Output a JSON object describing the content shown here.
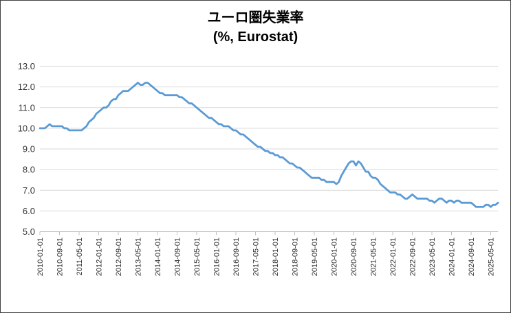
{
  "chart": {
    "title_line1": "ユーロ圏失業率",
    "title_line2": "(%, Eurostat)",
    "colors": {
      "line": "#5B9BD5",
      "gridline": "#D9D9D9",
      "axis": "#BFBFBF",
      "tick_label": "#333333",
      "border": "#404040",
      "background": "#FFFFFF"
    }
  },
  "chart_data": {
    "type": "line",
    "title": "ユーロ圏失業率 (%, Eurostat)",
    "xlabel": "",
    "ylabel": "",
    "ylim": [
      5.0,
      13.0
    ],
    "y_tick_labels": [
      "5.0",
      "6.0",
      "7.0",
      "8.0",
      "9.0",
      "10.0",
      "11.0",
      "12.0",
      "13.0"
    ],
    "grid": "horizontal",
    "legend": "none",
    "frequency": "monthly",
    "x_start": "2010-01",
    "x_end": "2025-08",
    "x_label_every_n_months": 8,
    "x_tick_labels": [
      "2010-01-01",
      "2010-09-01",
      "2011-05-01",
      "2012-01-01",
      "2012-09-01",
      "2013-05-01",
      "2014-01-01",
      "2014-09-01",
      "2015-05-01",
      "2016-01-01",
      "2016-09-01",
      "2017-05-01",
      "2018-01-01",
      "2018-09-01",
      "2019-05-01",
      "2020-01-01",
      "2020-09-01",
      "2021-05-01",
      "2022-01-01",
      "2022-09-01",
      "2023-05-01",
      "2024-01-01",
      "2024-09-01",
      "2025-05-01"
    ],
    "series": [
      {
        "name": "euro-area-unemployment-rate",
        "values": [
          10.0,
          10.0,
          10.0,
          10.1,
          10.2,
          10.1,
          10.1,
          10.1,
          10.1,
          10.1,
          10.0,
          10.0,
          9.9,
          9.9,
          9.9,
          9.9,
          9.9,
          9.9,
          10.0,
          10.1,
          10.3,
          10.4,
          10.5,
          10.7,
          10.8,
          10.9,
          11.0,
          11.0,
          11.1,
          11.3,
          11.4,
          11.4,
          11.6,
          11.7,
          11.8,
          11.8,
          11.8,
          11.9,
          12.0,
          12.1,
          12.2,
          12.1,
          12.1,
          12.2,
          12.2,
          12.1,
          12.0,
          11.9,
          11.8,
          11.7,
          11.7,
          11.6,
          11.6,
          11.6,
          11.6,
          11.6,
          11.6,
          11.5,
          11.5,
          11.4,
          11.3,
          11.2,
          11.2,
          11.1,
          11.0,
          10.9,
          10.8,
          10.7,
          10.6,
          10.5,
          10.5,
          10.4,
          10.3,
          10.2,
          10.2,
          10.1,
          10.1,
          10.1,
          10.0,
          9.9,
          9.9,
          9.8,
          9.7,
          9.7,
          9.6,
          9.5,
          9.4,
          9.3,
          9.2,
          9.1,
          9.1,
          9.0,
          8.9,
          8.9,
          8.8,
          8.8,
          8.7,
          8.7,
          8.6,
          8.6,
          8.5,
          8.4,
          8.3,
          8.3,
          8.2,
          8.1,
          8.1,
          8.0,
          7.9,
          7.8,
          7.7,
          7.6,
          7.6,
          7.6,
          7.6,
          7.5,
          7.5,
          7.4,
          7.4,
          7.4,
          7.4,
          7.3,
          7.4,
          7.7,
          7.9,
          8.1,
          8.3,
          8.4,
          8.4,
          8.2,
          8.4,
          8.3,
          8.1,
          7.9,
          7.9,
          7.7,
          7.6,
          7.6,
          7.5,
          7.3,
          7.2,
          7.1,
          7.0,
          6.9,
          6.9,
          6.9,
          6.8,
          6.8,
          6.7,
          6.6,
          6.6,
          6.7,
          6.8,
          6.7,
          6.6,
          6.6,
          6.6,
          6.6,
          6.6,
          6.5,
          6.5,
          6.4,
          6.5,
          6.6,
          6.6,
          6.5,
          6.4,
          6.5,
          6.5,
          6.4,
          6.5,
          6.5,
          6.4,
          6.4,
          6.4,
          6.4,
          6.4,
          6.3,
          6.2,
          6.2,
          6.2,
          6.2,
          6.3,
          6.3,
          6.2,
          6.3,
          6.3,
          6.4
        ]
      }
    ]
  }
}
